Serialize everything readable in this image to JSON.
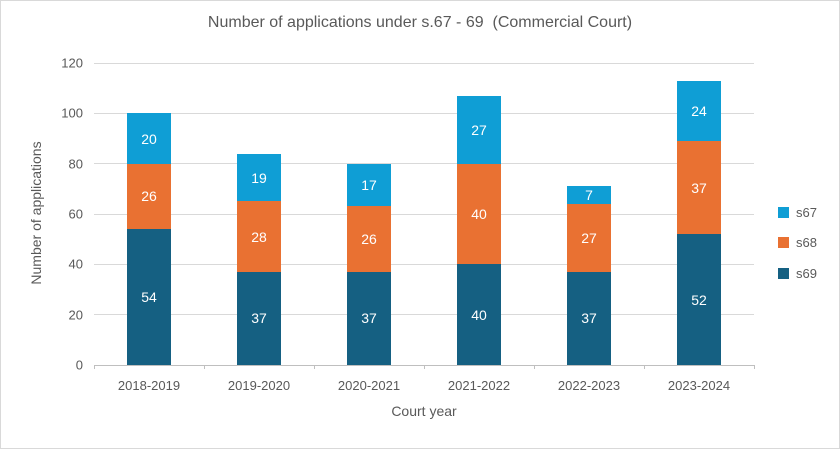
{
  "chart_data": {
    "type": "bar",
    "stacked": true,
    "title": "Number of applications under s.67 - 69  (Commercial Court)",
    "xlabel": "Court year",
    "ylabel": "Number of applications",
    "categories": [
      "2018-2019",
      "2019-2020",
      "2020-2021",
      "2021-2022",
      "2022-2023",
      "2023-2024"
    ],
    "series": [
      {
        "name": "s69",
        "color": "#156082",
        "values": [
          54,
          37,
          37,
          40,
          37,
          52
        ]
      },
      {
        "name": "s68",
        "color": "#E97132",
        "values": [
          26,
          28,
          26,
          40,
          27,
          37
        ]
      },
      {
        "name": "s67",
        "color": "#0F9ED5",
        "values": [
          20,
          19,
          17,
          27,
          7,
          24
        ]
      }
    ],
    "legend": [
      {
        "label": "s67",
        "color": "#0F9ED5"
      },
      {
        "label": "s68",
        "color": "#E97132"
      },
      {
        "label": "s69",
        "color": "#156082"
      }
    ],
    "legend_position": "right",
    "ylim": [
      0,
      120
    ],
    "yticks": [
      0,
      20,
      40,
      60,
      80,
      100,
      120
    ],
    "grid": true,
    "data_label_color": "#FFFFFF"
  },
  "style": {
    "text_color": "#595959",
    "gridline_color": "#D9D9D9",
    "axis_line_color": "#BFBFBF",
    "background": "#FFFFFF",
    "border_color": "#D9D9D9"
  }
}
